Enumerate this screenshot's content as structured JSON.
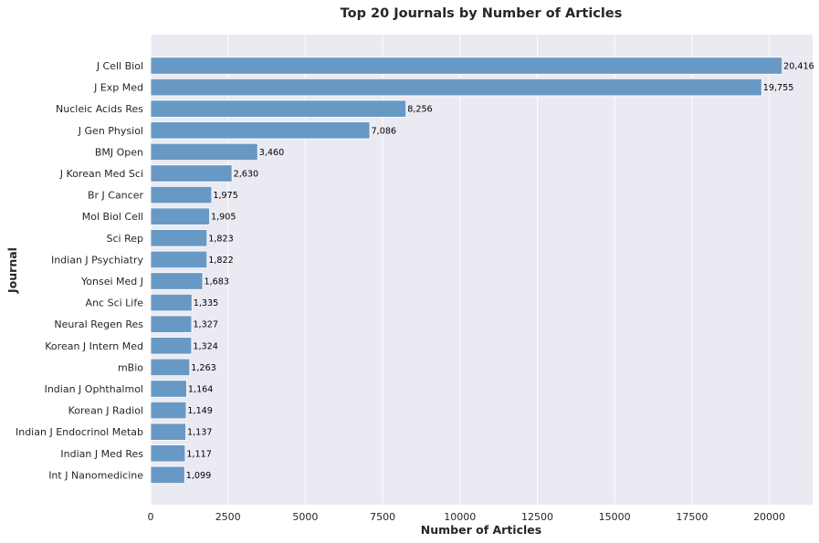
{
  "chart_data": {
    "type": "bar",
    "orientation": "horizontal",
    "title": "Top 20 Journals by Number of Articles",
    "xlabel": "Number of Articles",
    "ylabel": "Journal",
    "xlim": [
      0,
      21400
    ],
    "xticks": [
      0,
      2500,
      5000,
      7500,
      10000,
      12500,
      15000,
      17500,
      20000
    ],
    "grid": true,
    "legend": "none",
    "colors": {
      "bar": "#6899c5",
      "background": "#eaeaf2",
      "grid": "#ffffff"
    },
    "categories": [
      "J Cell Biol",
      "J Exp Med",
      "Nucleic Acids Res",
      "J Gen Physiol",
      "BMJ Open",
      "J Korean Med Sci",
      "Br J Cancer",
      "Mol Biol Cell",
      "Sci Rep",
      "Indian J Psychiatry",
      "Yonsei Med J",
      "Anc Sci Life",
      "Neural Regen Res",
      "Korean J Intern Med",
      "mBio",
      "Indian J Ophthalmol",
      "Korean J Radiol",
      "Indian J Endocrinol Metab",
      "Indian J Med Res",
      "Int J Nanomedicine"
    ],
    "values": [
      20416,
      19755,
      8256,
      7086,
      3460,
      2630,
      1975,
      1905,
      1823,
      1822,
      1683,
      1335,
      1327,
      1324,
      1263,
      1164,
      1149,
      1137,
      1117,
      1099
    ],
    "value_labels": [
      "20,416",
      "19,755",
      "8,256",
      "7,086",
      "3,460",
      "2,630",
      "1,975",
      "1,905",
      "1,823",
      "1,822",
      "1,683",
      "1,335",
      "1,327",
      "1,324",
      "1,263",
      "1,164",
      "1,149",
      "1,137",
      "1,117",
      "1,099"
    ]
  }
}
